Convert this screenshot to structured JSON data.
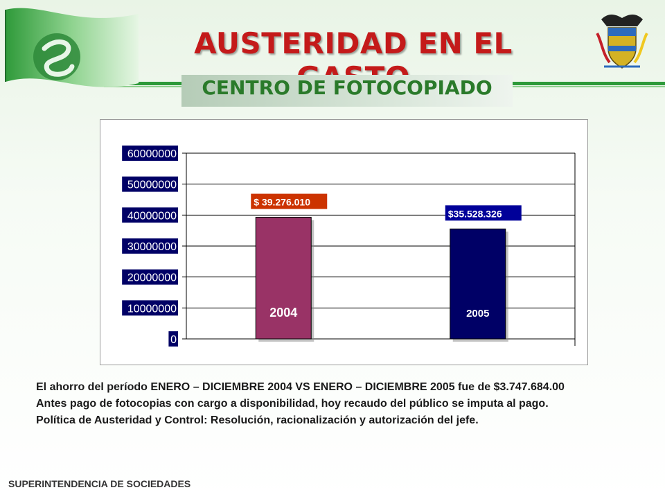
{
  "header": {
    "title": "AUSTERIDAD EN EL GASTO",
    "subtitle": "CENTRO DE FOTOCOPIADO"
  },
  "logos": {
    "left": "supersociedades-flag-logo",
    "right": "colombia-coat-of-arms"
  },
  "colors": {
    "title": "#c41a1a",
    "subtitle": "#2a7a2a",
    "bar_2004": "#993366",
    "bar_2005": "#000066",
    "label_2004_bg": "#cc3300",
    "label_2005_bg": "#000099",
    "tick_label_bg": "#000066"
  },
  "chart_data": {
    "type": "bar",
    "categories": [
      "2004",
      "2005"
    ],
    "values": [
      39276010,
      35528326
    ],
    "data_labels": [
      "$ 39.276.010",
      "$35.528.326"
    ],
    "yticks": [
      "0",
      "10000000",
      "20000000",
      "30000000",
      "40000000",
      "50000000",
      "60000000"
    ],
    "ylim": [
      0,
      60000000
    ],
    "grid": true,
    "title": "",
    "xlabel": "",
    "ylabel": ""
  },
  "body": {
    "paragraph_1": "El ahorro del período ENERO – DICIEMBRE 2004 VS ENERO – DICIEMBRE 2005 fue de $3.747.684.00",
    "paragraph_2": "Antes pago de fotocopias con cargo a disponibilidad, hoy recaudo del público se imputa al pago.",
    "paragraph_3": "Política de Austeridad y Control: Resolución, racionalización y autorización del jefe."
  },
  "footer": {
    "text": "SUPERINTENDENCIA DE SOCIEDADES"
  }
}
